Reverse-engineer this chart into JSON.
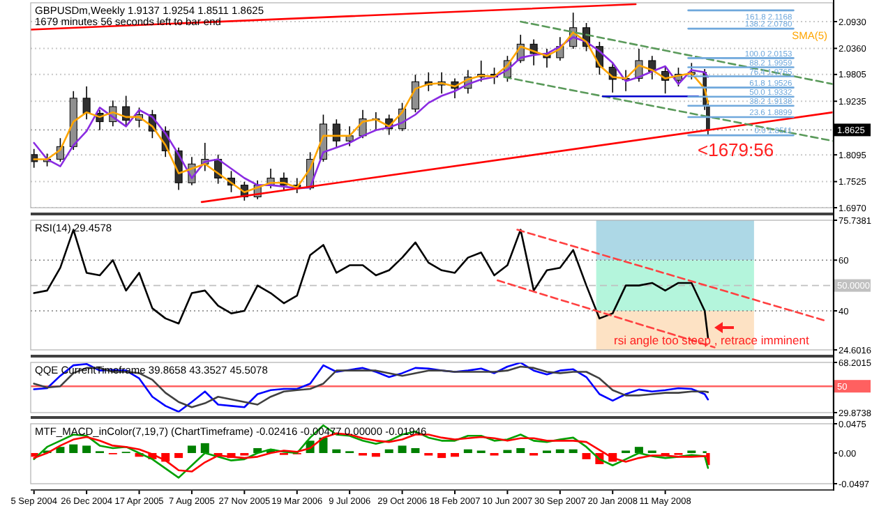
{
  "chart_data": [
    {
      "type": "candlestick",
      "title": "GBPUSDm,Weekly  1.9137 1.9254 1.8511 1.8625",
      "subtitle": "1679 minutes 56 seconds left to bar end",
      "colors": [
        "#303030",
        "#909090",
        "#909090",
        "#909090",
        "#303030",
        "#303030",
        "#909090",
        "#303030",
        "#909090",
        "#303030",
        "#303030",
        "#303030",
        "#909090",
        "#909090",
        "#303030",
        "#303030",
        "#303030",
        "#909090",
        "#909090",
        "#303030",
        "#303030",
        "#909090",
        "#909090",
        "#303030",
        "#909090",
        "#909090",
        "#909090",
        "#303030",
        "#909090",
        "#909090",
        "#303030",
        "#909090",
        "#303030",
        "#909090",
        "#909090",
        "#303030",
        "#909090",
        "#909090",
        "#303030",
        "#303030",
        "#909090",
        "#909090",
        "#303030",
        "#303030",
        "#303030",
        "#909090",
        "#909090",
        "#303030",
        "#303030",
        "#909090",
        "#909090",
        "#303030",
        "#303030"
      ],
      "grid": "y",
      "tick_labels": "y",
      "x": [
        "2004-09-05",
        "2004-10-03",
        "2004-10-31",
        "2004-11-28",
        "2004-12-26",
        "2005-01-23",
        "2005-02-20",
        "2005-03-20",
        "2005-04-17",
        "2005-05-15",
        "2005-06-12",
        "2005-07-10",
        "2005-08-07",
        "2005-09-04",
        "2005-10-02",
        "2005-10-30",
        "2005-11-27",
        "2005-12-25",
        "2006-01-22",
        "2006-02-19",
        "2006-03-19",
        "2006-04-16",
        "2006-05-14",
        "2006-06-11",
        "2006-07-09",
        "2006-08-06",
        "2006-09-03",
        "2006-10-01",
        "2006-10-29",
        "2006-11-26",
        "2006-12-24",
        "2007-01-21",
        "2007-02-18",
        "2007-03-18",
        "2007-04-15",
        "2007-05-13",
        "2007-06-10",
        "2007-07-08",
        "2007-08-05",
        "2007-09-02",
        "2007-09-30",
        "2007-10-28",
        "2007-11-25",
        "2007-12-23",
        "2008-01-20",
        "2008-02-17",
        "2008-03-16",
        "2008-04-13",
        "2008-05-11",
        "2008-06-08",
        "2008-07-06",
        "2008-08-03",
        "2008-08-10"
      ],
      "xlim": [
        "2004-08-29",
        "2009-05-03"
      ],
      "ylim": [
        1.697,
        2.133
      ],
      "yticks": [
        {
          "value": 2.093,
          "label": "2.0930"
        },
        {
          "value": 2.036,
          "label": "2.0360"
        },
        {
          "value": 1.9805,
          "label": "1.9805"
        },
        {
          "value": 1.9235,
          "label": "1.9235"
        },
        {
          "value": 1.8095,
          "label": "1.8095"
        },
        {
          "value": 1.7525,
          "label": "1.7525"
        },
        {
          "value": 1.697,
          "label": "1.6970"
        }
      ],
      "ohlc": [
        [
          1.81,
          1.822,
          1.782,
          1.795
        ],
        [
          1.795,
          1.812,
          1.785,
          1.8
        ],
        [
          1.8,
          1.845,
          1.795,
          1.827
        ],
        [
          1.827,
          1.945,
          1.82,
          1.93
        ],
        [
          1.93,
          1.955,
          1.885,
          1.898
        ],
        [
          1.898,
          1.905,
          1.862,
          1.88
        ],
        [
          1.88,
          1.925,
          1.87,
          1.912
        ],
        [
          1.912,
          1.935,
          1.87,
          1.883
        ],
        [
          1.883,
          1.91,
          1.868,
          1.895
        ],
        [
          1.895,
          1.905,
          1.845,
          1.86
        ],
        [
          1.86,
          1.87,
          1.805,
          1.818
        ],
        [
          1.818,
          1.825,
          1.735,
          1.75
        ],
        [
          1.75,
          1.805,
          1.745,
          1.79
        ],
        [
          1.79,
          1.835,
          1.775,
          1.8
        ],
        [
          1.8,
          1.81,
          1.748,
          1.76
        ],
        [
          1.76,
          1.775,
          1.73,
          1.745
        ],
        [
          1.745,
          1.752,
          1.712,
          1.72
        ],
        [
          1.72,
          1.755,
          1.715,
          1.745
        ],
        [
          1.745,
          1.78,
          1.738,
          1.76
        ],
        [
          1.76,
          1.772,
          1.735,
          1.745
        ],
        [
          1.745,
          1.76,
          1.728,
          1.739
        ],
        [
          1.739,
          1.815,
          1.735,
          1.8
        ],
        [
          1.8,
          1.895,
          1.795,
          1.875
        ],
        [
          1.875,
          1.885,
          1.825,
          1.839
        ],
        [
          1.839,
          1.87,
          1.828,
          1.85
        ],
        [
          1.85,
          1.905,
          1.845,
          1.886
        ],
        [
          1.886,
          1.9,
          1.862,
          1.886
        ],
        [
          1.886,
          1.895,
          1.852,
          1.865
        ],
        [
          1.865,
          1.92,
          1.86,
          1.907
        ],
        [
          1.907,
          1.98,
          1.9,
          1.965
        ],
        [
          1.965,
          1.985,
          1.945,
          1.958
        ],
        [
          1.958,
          1.985,
          1.94,
          1.965
        ],
        [
          1.965,
          1.972,
          1.93,
          1.951
        ],
        [
          1.951,
          1.99,
          1.94,
          1.975
        ],
        [
          1.975,
          2.01,
          1.965,
          1.981
        ],
        [
          1.981,
          1.995,
          1.96,
          1.975
        ],
        [
          1.975,
          2.02,
          1.965,
          2.01
        ],
        [
          2.01,
          2.065,
          2.005,
          2.045
        ],
        [
          2.045,
          2.055,
          2.0,
          2.025
        ],
        [
          2.025,
          2.035,
          1.995,
          2.016
        ],
        [
          2.016,
          2.06,
          2.01,
          2.04
        ],
        [
          2.04,
          2.112,
          2.035,
          2.08
        ],
        [
          2.08,
          2.09,
          2.03,
          2.04
        ],
        [
          2.04,
          2.05,
          1.98,
          1.996
        ],
        [
          1.996,
          2.005,
          1.942,
          1.97
        ],
        [
          1.97,
          1.99,
          1.945,
          1.972
        ],
        [
          1.972,
          2.035,
          1.965,
          2.01
        ],
        [
          2.01,
          2.02,
          1.97,
          1.987
        ],
        [
          1.987,
          1.998,
          1.94,
          1.968
        ],
        [
          1.968,
          1.995,
          1.955,
          1.981
        ],
        [
          1.981,
          2.005,
          1.97,
          1.985
        ],
        [
          1.985,
          1.992,
          1.905,
          1.9137
        ],
        [
          1.9137,
          1.9254,
          1.8511,
          1.8625
        ]
      ],
      "series": [
        {
          "type": "line",
          "color": "#8a2be2",
          "values": [
            1.835,
            1.8,
            1.785,
            1.83,
            1.86,
            1.91,
            1.89,
            1.87,
            1.905,
            1.89,
            1.855,
            1.81,
            1.76,
            1.795,
            1.8,
            1.78,
            1.76,
            1.745,
            1.745,
            1.742,
            1.738,
            1.74,
            1.815,
            1.825,
            1.835,
            1.85,
            1.862,
            1.868,
            1.878,
            1.895,
            1.92,
            1.935,
            1.945,
            1.96,
            1.97,
            1.975,
            1.99,
            2.016,
            2.022,
            2.025,
            2.04,
            2.06,
            2.05,
            2.03,
            2.005,
            1.966,
            1.975,
            1.987,
            1.998,
            1.96,
            1.99,
            1.985,
            1.975
          ]
        },
        {
          "type": "line",
          "name": "SMA(5)",
          "color": "#ffa500",
          "values": [
            1.8,
            1.8,
            1.82,
            1.88,
            1.9,
            1.89,
            1.9,
            1.89,
            1.89,
            1.87,
            1.83,
            1.77,
            1.78,
            1.79,
            1.77,
            1.75,
            1.73,
            1.74,
            1.75,
            1.75,
            1.74,
            1.78,
            1.85,
            1.85,
            1.85,
            1.88,
            1.885,
            1.87,
            1.9,
            1.95,
            1.96,
            1.962,
            1.955,
            1.97,
            1.978,
            1.976,
            2.0,
            2.04,
            2.03,
            2.02,
            2.035,
            2.07,
            2.05,
            2.0,
            1.975,
            1.972,
            2.0,
            1.99,
            1.972,
            1.978,
            1.983,
            1.95,
            1.92
          ]
        },
        {
          "type": "line",
          "color": "#ff0000",
          "x": [
            "2004-08-29",
            "2008-03-09"
          ],
          "values": [
            2.076,
            2.13
          ]
        },
        {
          "type": "line",
          "color": "#ff0000",
          "x": [
            "2005-08-28",
            "2009-05-03"
          ],
          "values": [
            1.709,
            1.9
          ]
        },
        {
          "type": "line",
          "color": "#5a9a5a",
          "line_style": "dashed",
          "x": [
            "2007-07-08",
            "2009-05-03"
          ],
          "values": [
            2.093,
            1.96
          ]
        },
        {
          "type": "line",
          "color": "#5a9a5a",
          "line_style": "dashed",
          "x": [
            "2007-06-03",
            "2009-05-03"
          ],
          "values": [
            1.975,
            1.839
          ]
        },
        {
          "type": "line",
          "color": "#0000cd",
          "x": [
            "2007-12-30",
            "2008-07-20"
          ],
          "values": [
            1.934,
            1.934
          ]
        },
        {
          "type": "line",
          "name": "161.8 2.1168",
          "color": "#6fa8dc",
          "x": [
            "2008-06-29",
            "2009-02-08"
          ],
          "values": [
            2.1168,
            2.1168
          ]
        },
        {
          "type": "line",
          "name": "138.2 2.0780",
          "color": "#6fa8dc",
          "x": [
            "2008-06-29",
            "2009-02-08"
          ],
          "values": [
            2.078,
            2.078
          ]
        },
        {
          "type": "line",
          "name": "100.0 2.0153",
          "color": "#6fa8dc",
          "x": [
            "2008-06-29",
            "2009-02-08"
          ],
          "values": [
            2.0153,
            2.0153
          ]
        },
        {
          "type": "line",
          "name": "88.2 1.9959",
          "color": "#6fa8dc",
          "x": [
            "2008-06-29",
            "2009-02-08"
          ],
          "values": [
            1.9959,
            1.9959
          ]
        },
        {
          "type": "line",
          "name": "76.4 1.9765",
          "color": "#6fa8dc",
          "x": [
            "2008-06-29",
            "2009-02-08"
          ],
          "values": [
            1.9765,
            1.9765
          ]
        },
        {
          "type": "line",
          "name": "61.8 1.9526",
          "color": "#6fa8dc",
          "x": [
            "2008-06-29",
            "2009-02-08"
          ],
          "values": [
            1.9526,
            1.9526
          ]
        },
        {
          "type": "line",
          "name": "50.0 1.9332",
          "color": "#6fa8dc",
          "x": [
            "2008-06-29",
            "2009-02-08"
          ],
          "values": [
            1.9332,
            1.9332
          ]
        },
        {
          "type": "line",
          "name": "38.2 1.9138",
          "color": "#6fa8dc",
          "x": [
            "2008-06-29",
            "2009-02-08"
          ],
          "values": [
            1.9138,
            1.9138
          ]
        },
        {
          "type": "line",
          "name": "23.6 1.8899",
          "color": "#6fa8dc",
          "x": [
            "2008-06-29",
            "2009-02-08"
          ],
          "values": [
            1.8899,
            1.8899
          ]
        },
        {
          "type": "line",
          "name": "0.0 1.8511",
          "color": "#6fa8dc",
          "x": [
            "2008-06-29",
            "2009-02-08"
          ],
          "values": [
            1.8511,
            1.8511
          ]
        }
      ],
      "ref_lines": [
        {
          "axis": "y",
          "value": 1.8625,
          "label": "1.8625",
          "color": "#000000",
          "line_style": "dotted"
        }
      ],
      "annotations": [
        "<1679:56"
      ]
    },
    {
      "type": "line",
      "title": "RSI(14) 29.4578",
      "tick_labels": "y",
      "x": [
        "2004-09-05",
        "2004-10-03",
        "2004-10-31",
        "2004-11-28",
        "2004-12-26",
        "2005-01-23",
        "2005-02-20",
        "2005-03-20",
        "2005-04-17",
        "2005-05-15",
        "2005-06-12",
        "2005-07-10",
        "2005-08-07",
        "2005-09-04",
        "2005-10-02",
        "2005-10-30",
        "2005-11-27",
        "2005-12-25",
        "2006-01-22",
        "2006-02-19",
        "2006-03-19",
        "2006-04-16",
        "2006-05-14",
        "2006-06-11",
        "2006-07-09",
        "2006-08-06",
        "2006-09-03",
        "2006-10-01",
        "2006-10-29",
        "2006-11-26",
        "2006-12-24",
        "2007-01-21",
        "2007-02-18",
        "2007-03-18",
        "2007-04-15",
        "2007-05-13",
        "2007-06-10",
        "2007-07-08",
        "2007-08-05",
        "2007-09-02",
        "2007-09-30",
        "2007-10-28",
        "2007-11-25",
        "2007-12-23",
        "2008-01-20",
        "2008-02-17",
        "2008-03-16",
        "2008-04-13",
        "2008-05-11",
        "2008-06-08",
        "2008-07-06",
        "2008-08-03",
        "2008-08-10"
      ],
      "xlim": [
        "2004-08-29",
        "2009-05-03"
      ],
      "ylim": [
        24.6016,
        75.7381
      ],
      "yticks": [
        75.7381,
        60,
        40,
        24.6016
      ],
      "bands": [
        {
          "axis": "x",
          "from": "2007-12-16",
          "to": "2008-11-16",
          "color": "#add8e6"
        },
        {
          "axis": "x",
          "from": "2007-12-16",
          "to": "2008-11-16",
          "color": "#b4f5dc"
        },
        {
          "axis": "x",
          "from": "2007-12-16",
          "to": "2008-11-16",
          "color": "#fde2c4"
        }
      ],
      "ref_lines": [
        {
          "axis": "y",
          "value": 60,
          "color": "#808080",
          "line_style": "dotted"
        },
        {
          "axis": "y",
          "value": 50,
          "label": "50.0000",
          "color": "#c0c0c0",
          "line_style": "dashed"
        },
        {
          "axis": "y",
          "value": 40,
          "color": "#808080",
          "line_style": "dotted"
        }
      ],
      "series": [
        {
          "color": "#000000",
          "values": [
            47,
            48,
            57,
            72,
            55,
            54,
            60,
            48,
            55,
            41,
            37,
            35,
            47,
            48,
            42,
            39,
            40,
            50,
            47,
            43,
            46,
            62,
            66,
            55,
            58,
            58,
            54,
            56,
            61,
            67,
            59,
            56,
            55,
            61,
            63,
            54,
            58,
            72,
            48,
            56,
            57,
            64,
            50,
            37,
            39,
            50,
            50,
            51,
            48,
            51,
            51,
            40,
            29.4578
          ]
        },
        {
          "color": "#ff4040",
          "line_style": "dashed",
          "x": [
            "2007-07-01",
            "2009-04-19"
          ],
          "values": [
            72,
            36
          ]
        },
        {
          "color": "#ff4040",
          "line_style": "dashed",
          "x": [
            "2007-05-20",
            "2008-08-24"
          ],
          "values": [
            52,
            25.6
          ]
        }
      ],
      "annotations": [
        "rsi angle too steep , retrace imminent"
      ]
    },
    {
      "type": "line",
      "title": "QQE CurrentTimeframe 39.8658 43.3527 45.5078",
      "tick_labels": "y",
      "x": [
        "2004-09-05",
        "2004-10-03",
        "2004-10-31",
        "2004-11-28",
        "2004-12-26",
        "2005-01-23",
        "2005-02-20",
        "2005-03-20",
        "2005-04-17",
        "2005-05-15",
        "2005-06-12",
        "2005-07-10",
        "2005-08-07",
        "2005-09-04",
        "2005-10-02",
        "2005-10-30",
        "2005-11-27",
        "2005-12-25",
        "2006-01-22",
        "2006-02-19",
        "2006-03-19",
        "2006-04-16",
        "2006-05-14",
        "2006-06-11",
        "2006-07-09",
        "2006-08-06",
        "2006-09-03",
        "2006-10-01",
        "2006-10-29",
        "2006-11-26",
        "2006-12-24",
        "2007-01-21",
        "2007-02-18",
        "2007-03-18",
        "2007-04-15",
        "2007-05-13",
        "2007-06-10",
        "2007-07-08",
        "2007-08-05",
        "2007-09-02",
        "2007-09-30",
        "2007-10-28",
        "2007-11-25",
        "2007-12-23",
        "2008-01-20",
        "2008-02-17",
        "2008-03-16",
        "2008-04-13",
        "2008-05-11",
        "2008-06-08",
        "2008-07-06",
        "2008-08-03",
        "2008-08-10"
      ],
      "xlim": [
        "2004-08-29",
        "2009-05-03"
      ],
      "ylim": [
        29.8738,
        68.2015
      ],
      "yticks": [
        68.2015,
        29.8738
      ],
      "ref_lines": [
        {
          "axis": "y",
          "value": 50,
          "label": "50",
          "color": "#ff6060"
        }
      ],
      "series": [
        {
          "color": "#0000ff",
          "values": [
            47.7,
            48.5,
            58,
            66,
            67,
            62,
            62.5,
            62,
            56,
            42,
            35,
            30.5,
            38,
            46,
            36,
            35,
            34,
            44,
            47,
            48,
            48,
            52,
            66,
            61,
            62.5,
            64,
            61,
            57,
            60,
            64,
            63.5,
            62,
            61,
            62,
            63.5,
            60,
            65,
            68,
            62,
            59,
            62,
            63,
            57,
            44,
            39,
            44,
            47.5,
            46,
            47,
            48.5,
            48,
            44,
            39.8658
          ]
        },
        {
          "color": "#404040",
          "values": [
            52,
            49,
            50,
            60,
            64,
            64,
            61,
            61,
            60,
            55,
            45,
            38,
            34,
            37,
            42,
            40,
            38,
            36,
            42,
            46,
            47,
            48,
            52,
            62,
            62,
            62,
            62,
            60,
            58,
            60,
            62,
            62,
            61,
            61,
            61,
            61,
            62,
            65,
            64,
            61,
            60,
            61,
            61,
            56,
            47,
            43,
            43,
            44,
            45,
            45,
            46,
            46,
            45.5
          ]
        }
      ]
    },
    {
      "type": "bar",
      "title": "MTF_MACD_inColor(7,19,7) (ChartTimeframe) -0.02416 -0.00477 0.00000 -0.01946",
      "x": [
        "2004-09-05",
        "2004-10-03",
        "2004-10-31",
        "2004-11-28",
        "2004-12-26",
        "2005-01-23",
        "2005-02-20",
        "2005-03-20",
        "2005-04-17",
        "2005-05-15",
        "2005-06-12",
        "2005-07-10",
        "2005-08-07",
        "2005-09-04",
        "2005-10-02",
        "2005-10-30",
        "2005-11-27",
        "2005-12-25",
        "2006-01-22",
        "2006-02-19",
        "2006-03-19",
        "2006-04-16",
        "2006-05-14",
        "2006-06-11",
        "2006-07-09",
        "2006-08-06",
        "2006-09-03",
        "2006-10-01",
        "2006-10-29",
        "2006-11-26",
        "2006-12-24",
        "2007-01-21",
        "2007-02-18",
        "2007-03-18",
        "2007-04-15",
        "2007-05-13",
        "2007-06-10",
        "2007-07-08",
        "2007-08-05",
        "2007-09-02",
        "2007-09-30",
        "2007-10-28",
        "2007-11-25",
        "2007-12-23",
        "2008-01-20",
        "2008-02-17",
        "2008-03-16",
        "2008-04-13",
        "2008-05-11",
        "2008-06-08",
        "2008-07-06",
        "2008-08-03",
        "2008-08-10"
      ],
      "xlim": [
        "2004-08-29",
        "2009-05-03"
      ],
      "xticks": [
        {
          "value": "2004-09-05",
          "label": "5 Sep 2004"
        },
        {
          "value": "2004-12-26",
          "label": "26 Dec 2004"
        },
        {
          "value": "2005-04-17",
          "label": "17 Apr 2005"
        },
        {
          "value": "2005-08-07",
          "label": "7 Aug 2005"
        },
        {
          "value": "2005-11-27",
          "label": "27 Nov 2005"
        },
        {
          "value": "2006-03-19",
          "label": "19 Mar 2006"
        },
        {
          "value": "2006-07-09",
          "label": "9 Jul 2006"
        },
        {
          "value": "2006-10-29",
          "label": "29 Oct 2006"
        },
        {
          "value": "2007-02-18",
          "label": "18 Feb 2007"
        },
        {
          "value": "2007-06-10",
          "label": "10 Jun 2007"
        },
        {
          "value": "2007-09-30",
          "label": "30 Sep 2007"
        },
        {
          "value": "2008-01-20",
          "label": "20 Jan 2008"
        },
        {
          "value": "2008-05-11",
          "label": "11 May 2008"
        }
      ],
      "ylim": [
        -0.0497,
        0.0475
      ],
      "yticks": [
        0.0475,
        {
          "value": 0,
          "label": "0.00"
        },
        -0.0497
      ],
      "series": [
        {
          "type": "bar",
          "values": [
            -0.006,
            0.004,
            0.01,
            0.014,
            0.012,
            0.003,
            -0.002,
            0.002,
            -0.006,
            -0.01,
            -0.014,
            -0.008,
            0.012,
            0.016,
            -0.006,
            -0.008,
            -0.004,
            0.008,
            0.006,
            -0.003,
            -0.002,
            0.02,
            0.025,
            0.006,
            0.003,
            -0.004,
            -0.006,
            0.006,
            0.012,
            0.008,
            -0.004,
            -0.008,
            -0.006,
            0.006,
            0.004,
            -0.004,
            0.005,
            0.008,
            -0.004,
            0.004,
            0.006,
            0.006,
            -0.01,
            -0.018,
            -0.014,
            0.004,
            0.01,
            0.004,
            -0.004,
            -0.003,
            0.004,
            0.003,
            -0.01946
          ],
          "colors": [
            "#ff0000",
            "#008000",
            "#008000",
            "#008000",
            "#008000",
            "#008000",
            "#ff0000",
            "#008000",
            "#ff0000",
            "#ff0000",
            "#ff0000",
            "#ff0000",
            "#008000",
            "#008000",
            "#ff0000",
            "#ff0000",
            "#ff0000",
            "#008000",
            "#008000",
            "#ff0000",
            "#ff0000",
            "#008000",
            "#008000",
            "#008000",
            "#008000",
            "#ff0000",
            "#ff0000",
            "#008000",
            "#008000",
            "#008000",
            "#ff0000",
            "#ff0000",
            "#ff0000",
            "#008000",
            "#008000",
            "#ff0000",
            "#008000",
            "#008000",
            "#ff0000",
            "#008000",
            "#008000",
            "#008000",
            "#ff0000",
            "#ff0000",
            "#ff0000",
            "#008000",
            "#008000",
            "#008000",
            "#ff0000",
            "#ff0000",
            "#008000",
            "#008000",
            "#ff0000"
          ]
        },
        {
          "type": "line",
          "color": "#00a000",
          "values": [
            -0.01,
            0.01,
            0.02,
            0.03,
            0.028,
            0.012,
            0.008,
            0.01,
            0.0,
            -0.01,
            -0.025,
            -0.04,
            -0.02,
            0.0,
            -0.006,
            -0.012,
            -0.01,
            0.0,
            0.006,
            0.002,
            0.0,
            0.025,
            0.045,
            0.03,
            0.028,
            0.02,
            0.015,
            0.02,
            0.03,
            0.035,
            0.025,
            0.02,
            0.02,
            0.028,
            0.028,
            0.02,
            0.022,
            0.03,
            0.02,
            0.018,
            0.022,
            0.025,
            0.01,
            -0.01,
            -0.02,
            -0.01,
            0.0,
            -0.005,
            -0.008,
            -0.006,
            -0.003,
            -0.005,
            -0.02416
          ]
        },
        {
          "type": "line",
          "color": "#ff0000",
          "values": [
            -0.008,
            0.0,
            0.012,
            0.022,
            0.026,
            0.02,
            0.012,
            0.01,
            0.006,
            -0.002,
            -0.012,
            -0.028,
            -0.03,
            -0.015,
            -0.004,
            -0.006,
            -0.008,
            -0.006,
            0.0,
            0.004,
            0.002,
            0.008,
            0.025,
            0.032,
            0.03,
            0.024,
            0.02,
            0.018,
            0.022,
            0.03,
            0.03,
            0.025,
            0.022,
            0.024,
            0.026,
            0.024,
            0.02,
            0.024,
            0.024,
            0.02,
            0.02,
            0.02,
            0.018,
            0.005,
            -0.008,
            -0.014,
            -0.008,
            -0.004,
            -0.004,
            -0.006,
            -0.006,
            -0.005,
            -0.00477
          ]
        }
      ]
    }
  ]
}
